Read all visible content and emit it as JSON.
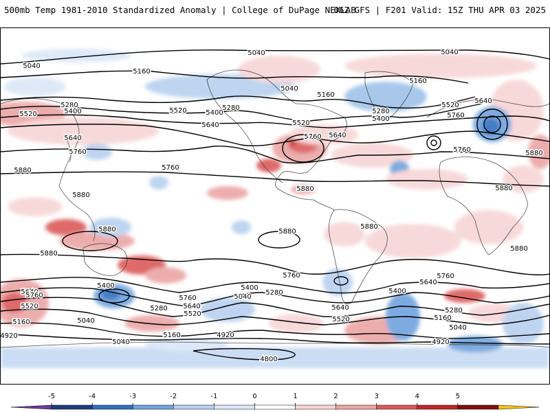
{
  "header": {
    "left_title": "500mb Temp 1981-2010 Standardized Anomaly | College of DuPage NEXLAB",
    "right_title": "06Z GFS | F201 Valid: 15Z THU APR 03 2025"
  },
  "contour_labels": [
    "5040",
    "5160",
    "5280",
    "5400",
    "5520",
    "5640",
    "5760",
    "5880",
    "4920",
    "4800"
  ],
  "colorbar": {
    "ticks": [
      "-5",
      "-4",
      "-3",
      "-2",
      "-1",
      "0",
      "1",
      "2",
      "3",
      "4",
      "5"
    ],
    "colors": [
      "#6a3d9a",
      "#1f3d7a",
      "#2f6fbf",
      "#6fa3dd",
      "#b7d0ef",
      "#dbe7f7",
      "#ffffff",
      "#f7d5d5",
      "#eba5a5",
      "#dc5a5a",
      "#c02828",
      "#7f0f0f",
      "#f5c518"
    ]
  }
}
